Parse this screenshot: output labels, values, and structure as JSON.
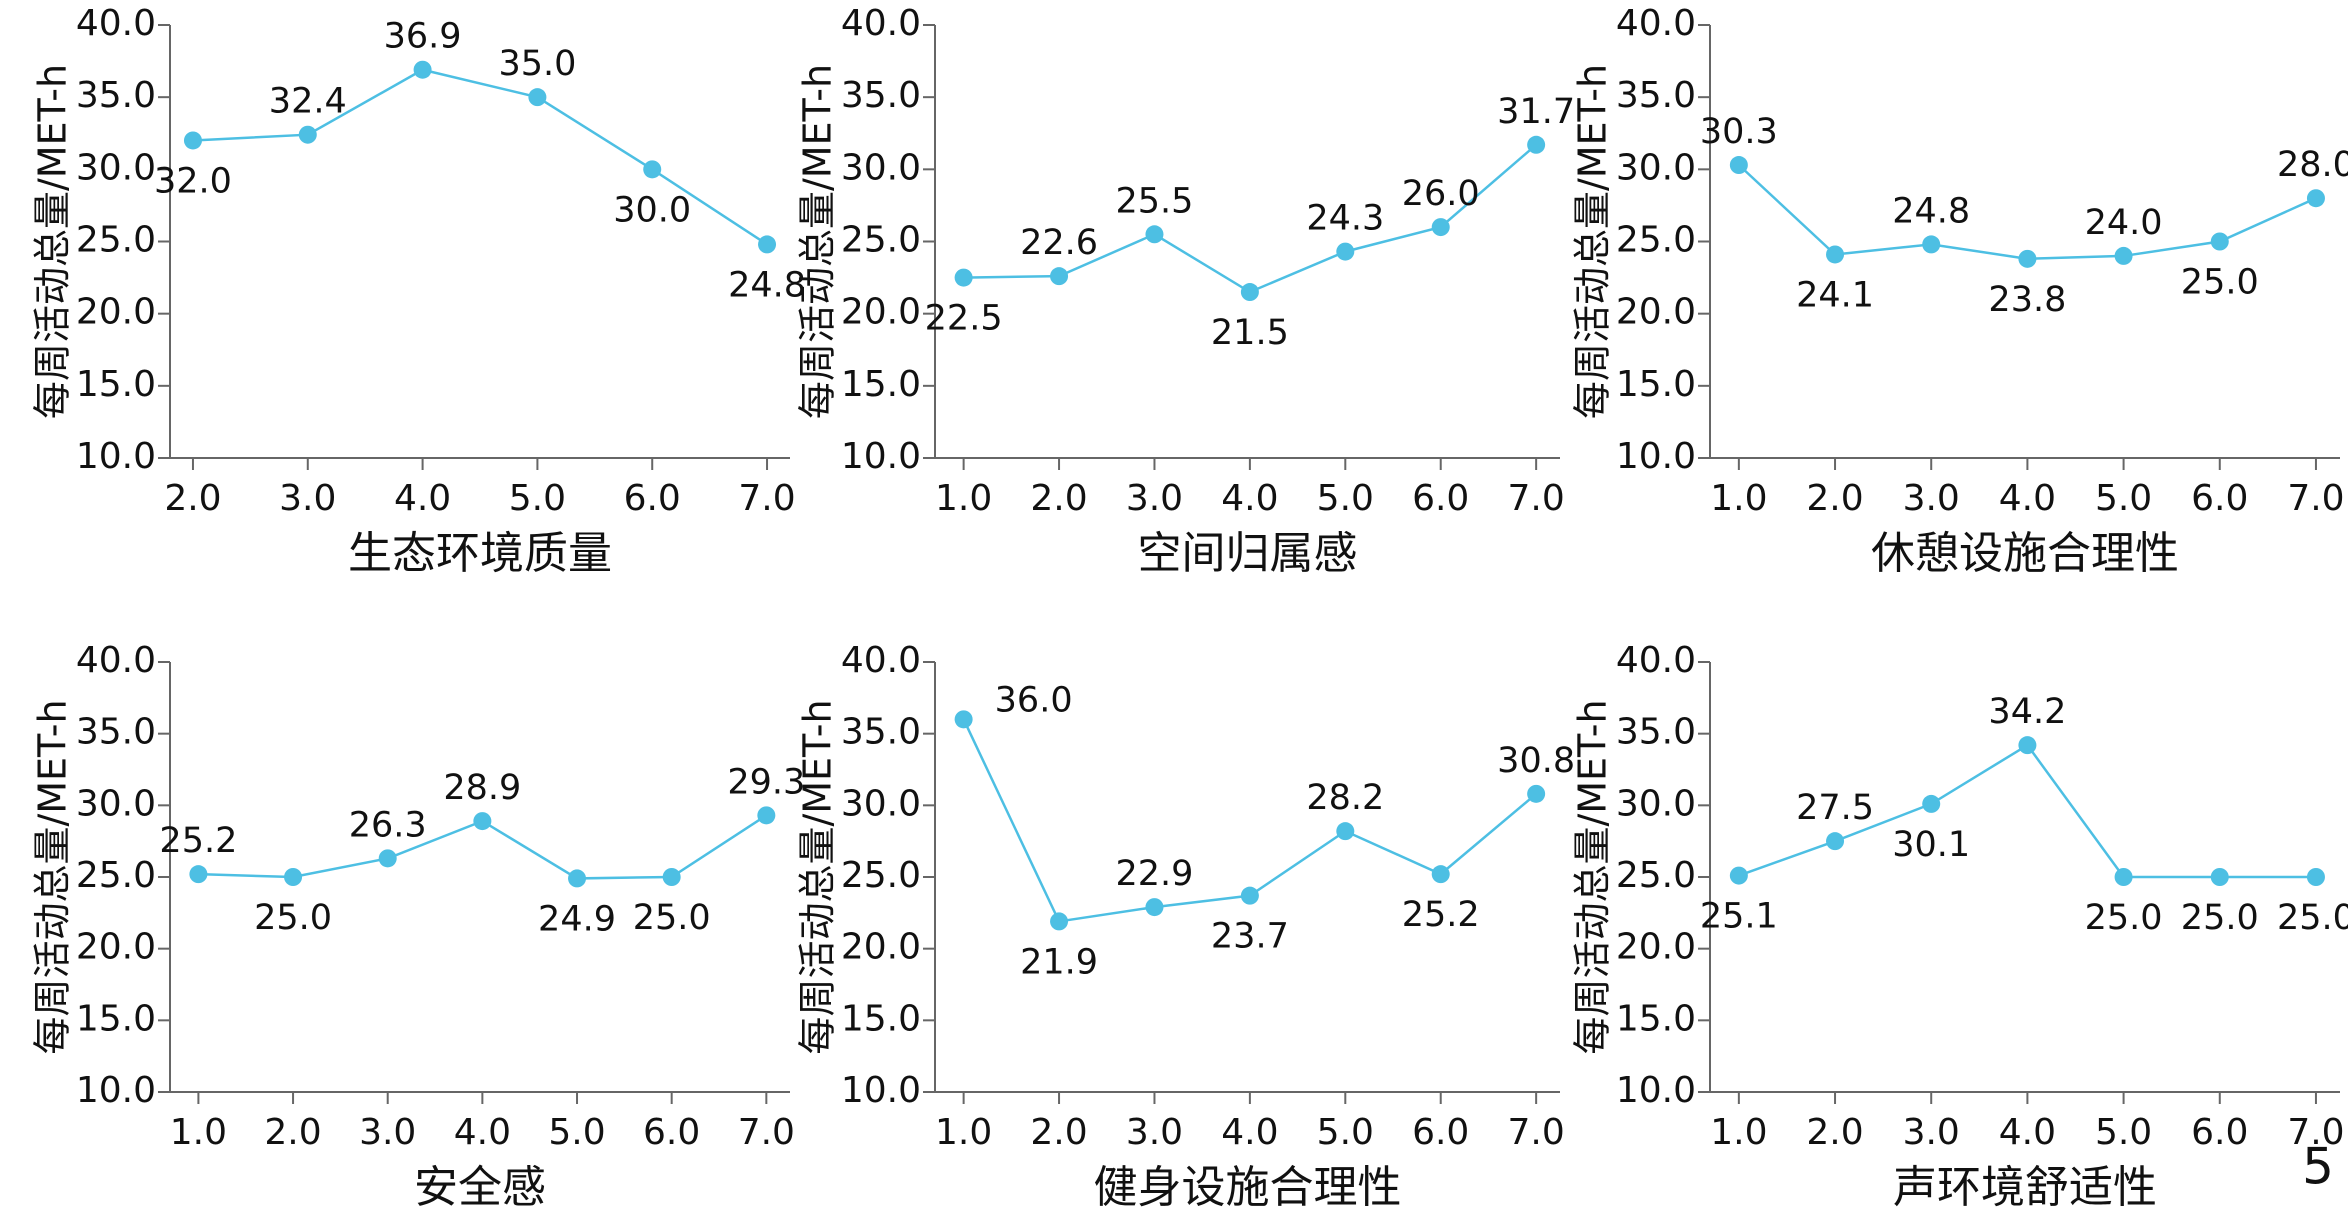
{
  "chart_data": [
    {
      "type": "line",
      "x_label": "生态环境质量",
      "y_label": "每周活动总量/MET-h",
      "x": [
        2,
        3,
        4,
        5,
        6,
        7
      ],
      "values": [
        32.0,
        32.4,
        36.9,
        35.0,
        30.0,
        24.8
      ],
      "value_labels": [
        "32.0",
        "32.4",
        "36.9",
        "35.0",
        "30.0",
        "24.8"
      ],
      "color": "#4dbfe3",
      "xlim": [
        1.8,
        7.2
      ],
      "ylim": [
        10,
        40
      ],
      "xticks": [
        {
          "value": 2,
          "label": "2.0"
        },
        {
          "value": 3,
          "label": "3.0"
        },
        {
          "value": 4,
          "label": "4.0"
        },
        {
          "value": 5,
          "label": "5.0"
        },
        {
          "value": 6,
          "label": "6.0"
        },
        {
          "value": 7,
          "label": "7.0"
        }
      ],
      "yticks": [
        {
          "value": 10,
          "label": "10.0"
        },
        {
          "value": 15,
          "label": "15.0"
        },
        {
          "value": 20,
          "label": "20.0"
        },
        {
          "value": 25,
          "label": "25.0"
        },
        {
          "value": 30,
          "label": "30.0"
        },
        {
          "value": 35,
          "label": "35.0"
        },
        {
          "value": 40,
          "label": "40.0"
        }
      ]
    },
    {
      "type": "line",
      "x_label": "空间归属感",
      "y_label": "每周活动总量/MET-h",
      "x": [
        1,
        2,
        3,
        4,
        5,
        6,
        7
      ],
      "values": [
        22.5,
        22.6,
        25.5,
        21.5,
        24.3,
        26.0,
        31.7
      ],
      "value_labels": [
        "22.5",
        "22.6",
        "25.5",
        "21.5",
        "24.3",
        "26.0",
        "31.7"
      ],
      "color": "#4dbfe3",
      "xlim": [
        0.7,
        7.25
      ],
      "ylim": [
        10,
        40
      ],
      "xticks": [
        {
          "value": 1,
          "label": "1.0"
        },
        {
          "value": 2,
          "label": "2.0"
        },
        {
          "value": 3,
          "label": "3.0"
        },
        {
          "value": 4,
          "label": "4.0"
        },
        {
          "value": 5,
          "label": "5.0"
        },
        {
          "value": 6,
          "label": "6.0"
        },
        {
          "value": 7,
          "label": "7.0"
        }
      ],
      "yticks": [
        {
          "value": 10,
          "label": "10.0"
        },
        {
          "value": 15,
          "label": "15.0"
        },
        {
          "value": 20,
          "label": "20.0"
        },
        {
          "value": 25,
          "label": "25.0"
        },
        {
          "value": 30,
          "label": "30.0"
        },
        {
          "value": 35,
          "label": "35.0"
        },
        {
          "value": 40,
          "label": "40.0"
        }
      ]
    },
    {
      "type": "line",
      "x_label": "休憩设施合理性",
      "y_label": "每周活动总量/MET-h",
      "x": [
        1,
        2,
        3,
        4,
        5,
        6,
        7
      ],
      "values": [
        30.3,
        24.1,
        24.8,
        23.8,
        24.0,
        25.0,
        28.0
      ],
      "value_labels": [
        "30.3",
        "24.1",
        "24.8",
        "23.8",
        "24.0",
        "25.0",
        "28.0"
      ],
      "color": "#4dbfe3",
      "xlim": [
        0.7,
        7.25
      ],
      "ylim": [
        10,
        40
      ],
      "xticks": [
        {
          "value": 1,
          "label": "1.0"
        },
        {
          "value": 2,
          "label": "2.0"
        },
        {
          "value": 3,
          "label": "3.0"
        },
        {
          "value": 4,
          "label": "4.0"
        },
        {
          "value": 5,
          "label": "5.0"
        },
        {
          "value": 6,
          "label": "6.0"
        },
        {
          "value": 7,
          "label": "7.0"
        }
      ],
      "yticks": [
        {
          "value": 10,
          "label": "10.0"
        },
        {
          "value": 15,
          "label": "15.0"
        },
        {
          "value": 20,
          "label": "20.0"
        },
        {
          "value": 25,
          "label": "25.0"
        },
        {
          "value": 30,
          "label": "30.0"
        },
        {
          "value": 35,
          "label": "35.0"
        },
        {
          "value": 40,
          "label": "40.0"
        }
      ]
    },
    {
      "type": "line",
      "x_label": "安全感",
      "y_label": "每周活动总量/MET-h",
      "x": [
        1,
        2,
        3,
        4,
        5,
        6,
        7
      ],
      "values": [
        25.2,
        25.0,
        26.3,
        28.9,
        24.9,
        25.0,
        29.3
      ],
      "value_labels": [
        "25.2",
        "25.0",
        "26.3",
        "28.9",
        "24.9",
        "25.0",
        "29.3"
      ],
      "color": "#4dbfe3",
      "xlim": [
        0.7,
        7.25
      ],
      "ylim": [
        10,
        40
      ],
      "xticks": [
        {
          "value": 1,
          "label": "1.0"
        },
        {
          "value": 2,
          "label": "2.0"
        },
        {
          "value": 3,
          "label": "3.0"
        },
        {
          "value": 4,
          "label": "4.0"
        },
        {
          "value": 5,
          "label": "5.0"
        },
        {
          "value": 6,
          "label": "6.0"
        },
        {
          "value": 7,
          "label": "7.0"
        }
      ],
      "yticks": [
        {
          "value": 10,
          "label": "10.0"
        },
        {
          "value": 15,
          "label": "15.0"
        },
        {
          "value": 20,
          "label": "20.0"
        },
        {
          "value": 25,
          "label": "25.0"
        },
        {
          "value": 30,
          "label": "30.0"
        },
        {
          "value": 35,
          "label": "35.0"
        },
        {
          "value": 40,
          "label": "40.0"
        }
      ]
    },
    {
      "type": "line",
      "x_label": "健身设施合理性",
      "y_label": "每周活动总量/MET-h",
      "x": [
        1,
        2,
        3,
        4,
        5,
        6,
        7
      ],
      "values": [
        36.0,
        21.9,
        22.9,
        23.7,
        28.2,
        25.2,
        30.8
      ],
      "value_labels": [
        "36.0",
        "21.9",
        "22.9",
        "23.7",
        "28.2",
        "25.2",
        "30.8"
      ],
      "color": "#4dbfe3",
      "xlim": [
        0.7,
        7.25
      ],
      "ylim": [
        10,
        40
      ],
      "xticks": [
        {
          "value": 1,
          "label": "1.0"
        },
        {
          "value": 2,
          "label": "2.0"
        },
        {
          "value": 3,
          "label": "3.0"
        },
        {
          "value": 4,
          "label": "4.0"
        },
        {
          "value": 5,
          "label": "5.0"
        },
        {
          "value": 6,
          "label": "6.0"
        },
        {
          "value": 7,
          "label": "7.0"
        }
      ],
      "yticks": [
        {
          "value": 10,
          "label": "10.0"
        },
        {
          "value": 15,
          "label": "15.0"
        },
        {
          "value": 20,
          "label": "20.0"
        },
        {
          "value": 25,
          "label": "25.0"
        },
        {
          "value": 30,
          "label": "30.0"
        },
        {
          "value": 35,
          "label": "35.0"
        },
        {
          "value": 40,
          "label": "40.0"
        }
      ]
    },
    {
      "type": "line",
      "x_label": "声环境舒适性",
      "y_label": "每周活动总量/MET-h",
      "x": [
        1,
        2,
        3,
        4,
        5,
        6,
        7
      ],
      "values": [
        25.1,
        27.5,
        30.1,
        34.2,
        25.0,
        25.0,
        25.0
      ],
      "value_labels": [
        "25.1",
        "27.5",
        "30.1",
        "34.2",
        "25.0",
        "25.0",
        "25.0"
      ],
      "color": "#4dbfe3",
      "xlim": [
        0.7,
        7.25
      ],
      "ylim": [
        10,
        40
      ],
      "xticks": [
        {
          "value": 1,
          "label": "1.0"
        },
        {
          "value": 2,
          "label": "2.0"
        },
        {
          "value": 3,
          "label": "3.0"
        },
        {
          "value": 4,
          "label": "4.0"
        },
        {
          "value": 5,
          "label": "5.0"
        },
        {
          "value": 6,
          "label": "6.0"
        },
        {
          "value": 7,
          "label": "7.0"
        }
      ],
      "yticks": [
        {
          "value": 10,
          "label": "10.0"
        },
        {
          "value": 15,
          "label": "15.0"
        },
        {
          "value": 20,
          "label": "20.0"
        },
        {
          "value": 25,
          "label": "25.0"
        },
        {
          "value": 30,
          "label": "30.0"
        },
        {
          "value": 35,
          "label": "35.0"
        },
        {
          "value": 40,
          "label": "40.0"
        }
      ]
    }
  ],
  "panel_label": "5"
}
